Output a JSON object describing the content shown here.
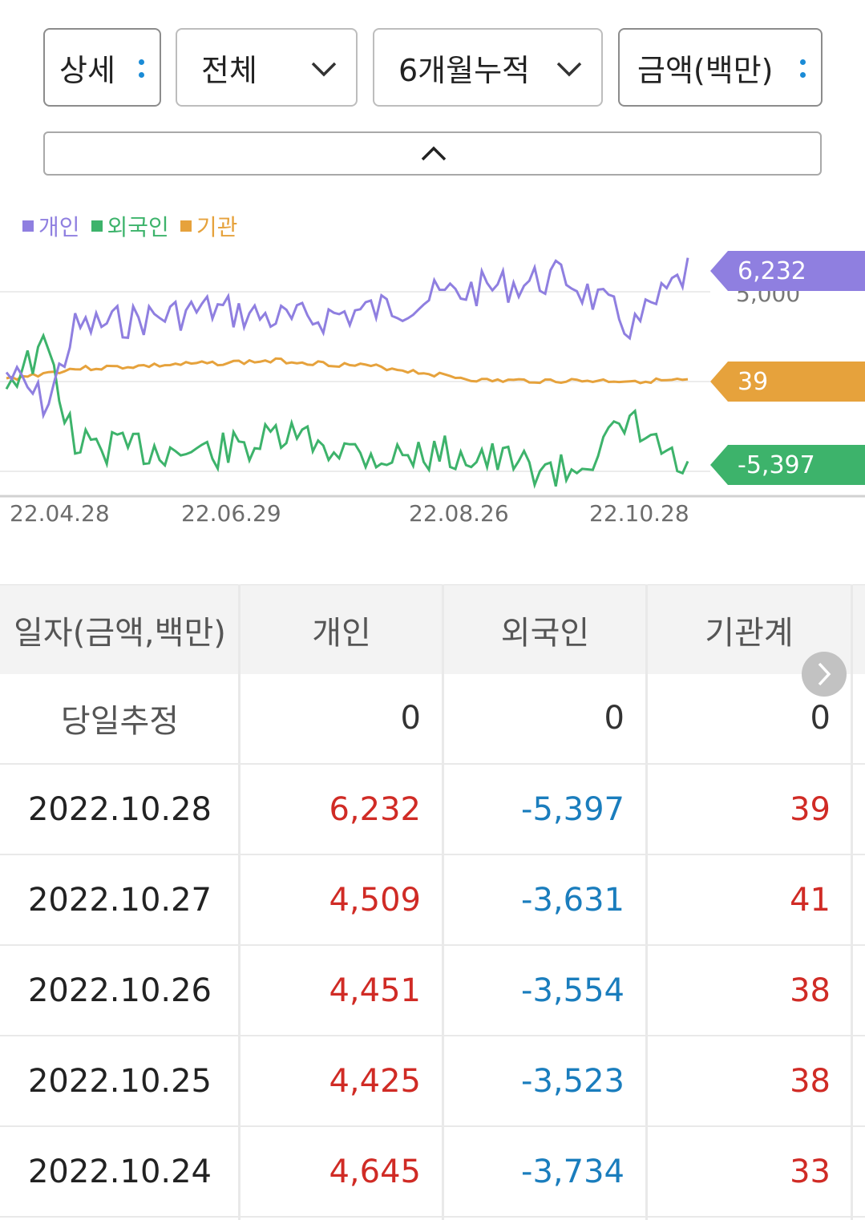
{
  "filters": {
    "type_label": "상세",
    "scope_label": "전체",
    "period_label": "6개월누적",
    "unit_label": "금액(백만)"
  },
  "legend": [
    {
      "name": "개인",
      "color": "#8f7fe0"
    },
    {
      "name": "외국인",
      "color": "#3db36b"
    },
    {
      "name": "기관",
      "color": "#e6a23c"
    }
  ],
  "chart_data": {
    "type": "line",
    "x_tick_labels": [
      "22.04.28",
      "22.06.29",
      "22.08.26",
      "22.10.28"
    ],
    "y_tick_labels": [
      "5,000"
    ],
    "series": [
      {
        "name": "개인",
        "color": "#8f7fe0",
        "last_value": "6,232"
      },
      {
        "name": "외국인",
        "color": "#3db36b",
        "last_value": "-5,397"
      },
      {
        "name": "기관",
        "color": "#e6a23c",
        "last_value": "39"
      }
    ]
  },
  "table": {
    "headers": [
      "일자(금액,백만)",
      "개인",
      "외국인",
      "기관계"
    ],
    "today_row": {
      "label": "당일추정",
      "individual": "0",
      "foreign": "0",
      "institution": "0"
    },
    "rows": [
      {
        "date": "2022.10.28",
        "individual": "6,232",
        "foreign": "-5,397",
        "institution": "39"
      },
      {
        "date": "2022.10.27",
        "individual": "4,509",
        "foreign": "-3,631",
        "institution": "41"
      },
      {
        "date": "2022.10.26",
        "individual": "4,451",
        "foreign": "-3,554",
        "institution": "38"
      },
      {
        "date": "2022.10.25",
        "individual": "4,425",
        "foreign": "-3,523",
        "institution": "38"
      },
      {
        "date": "2022.10.24",
        "individual": "4,645",
        "foreign": "-3,734",
        "institution": "33"
      }
    ]
  }
}
